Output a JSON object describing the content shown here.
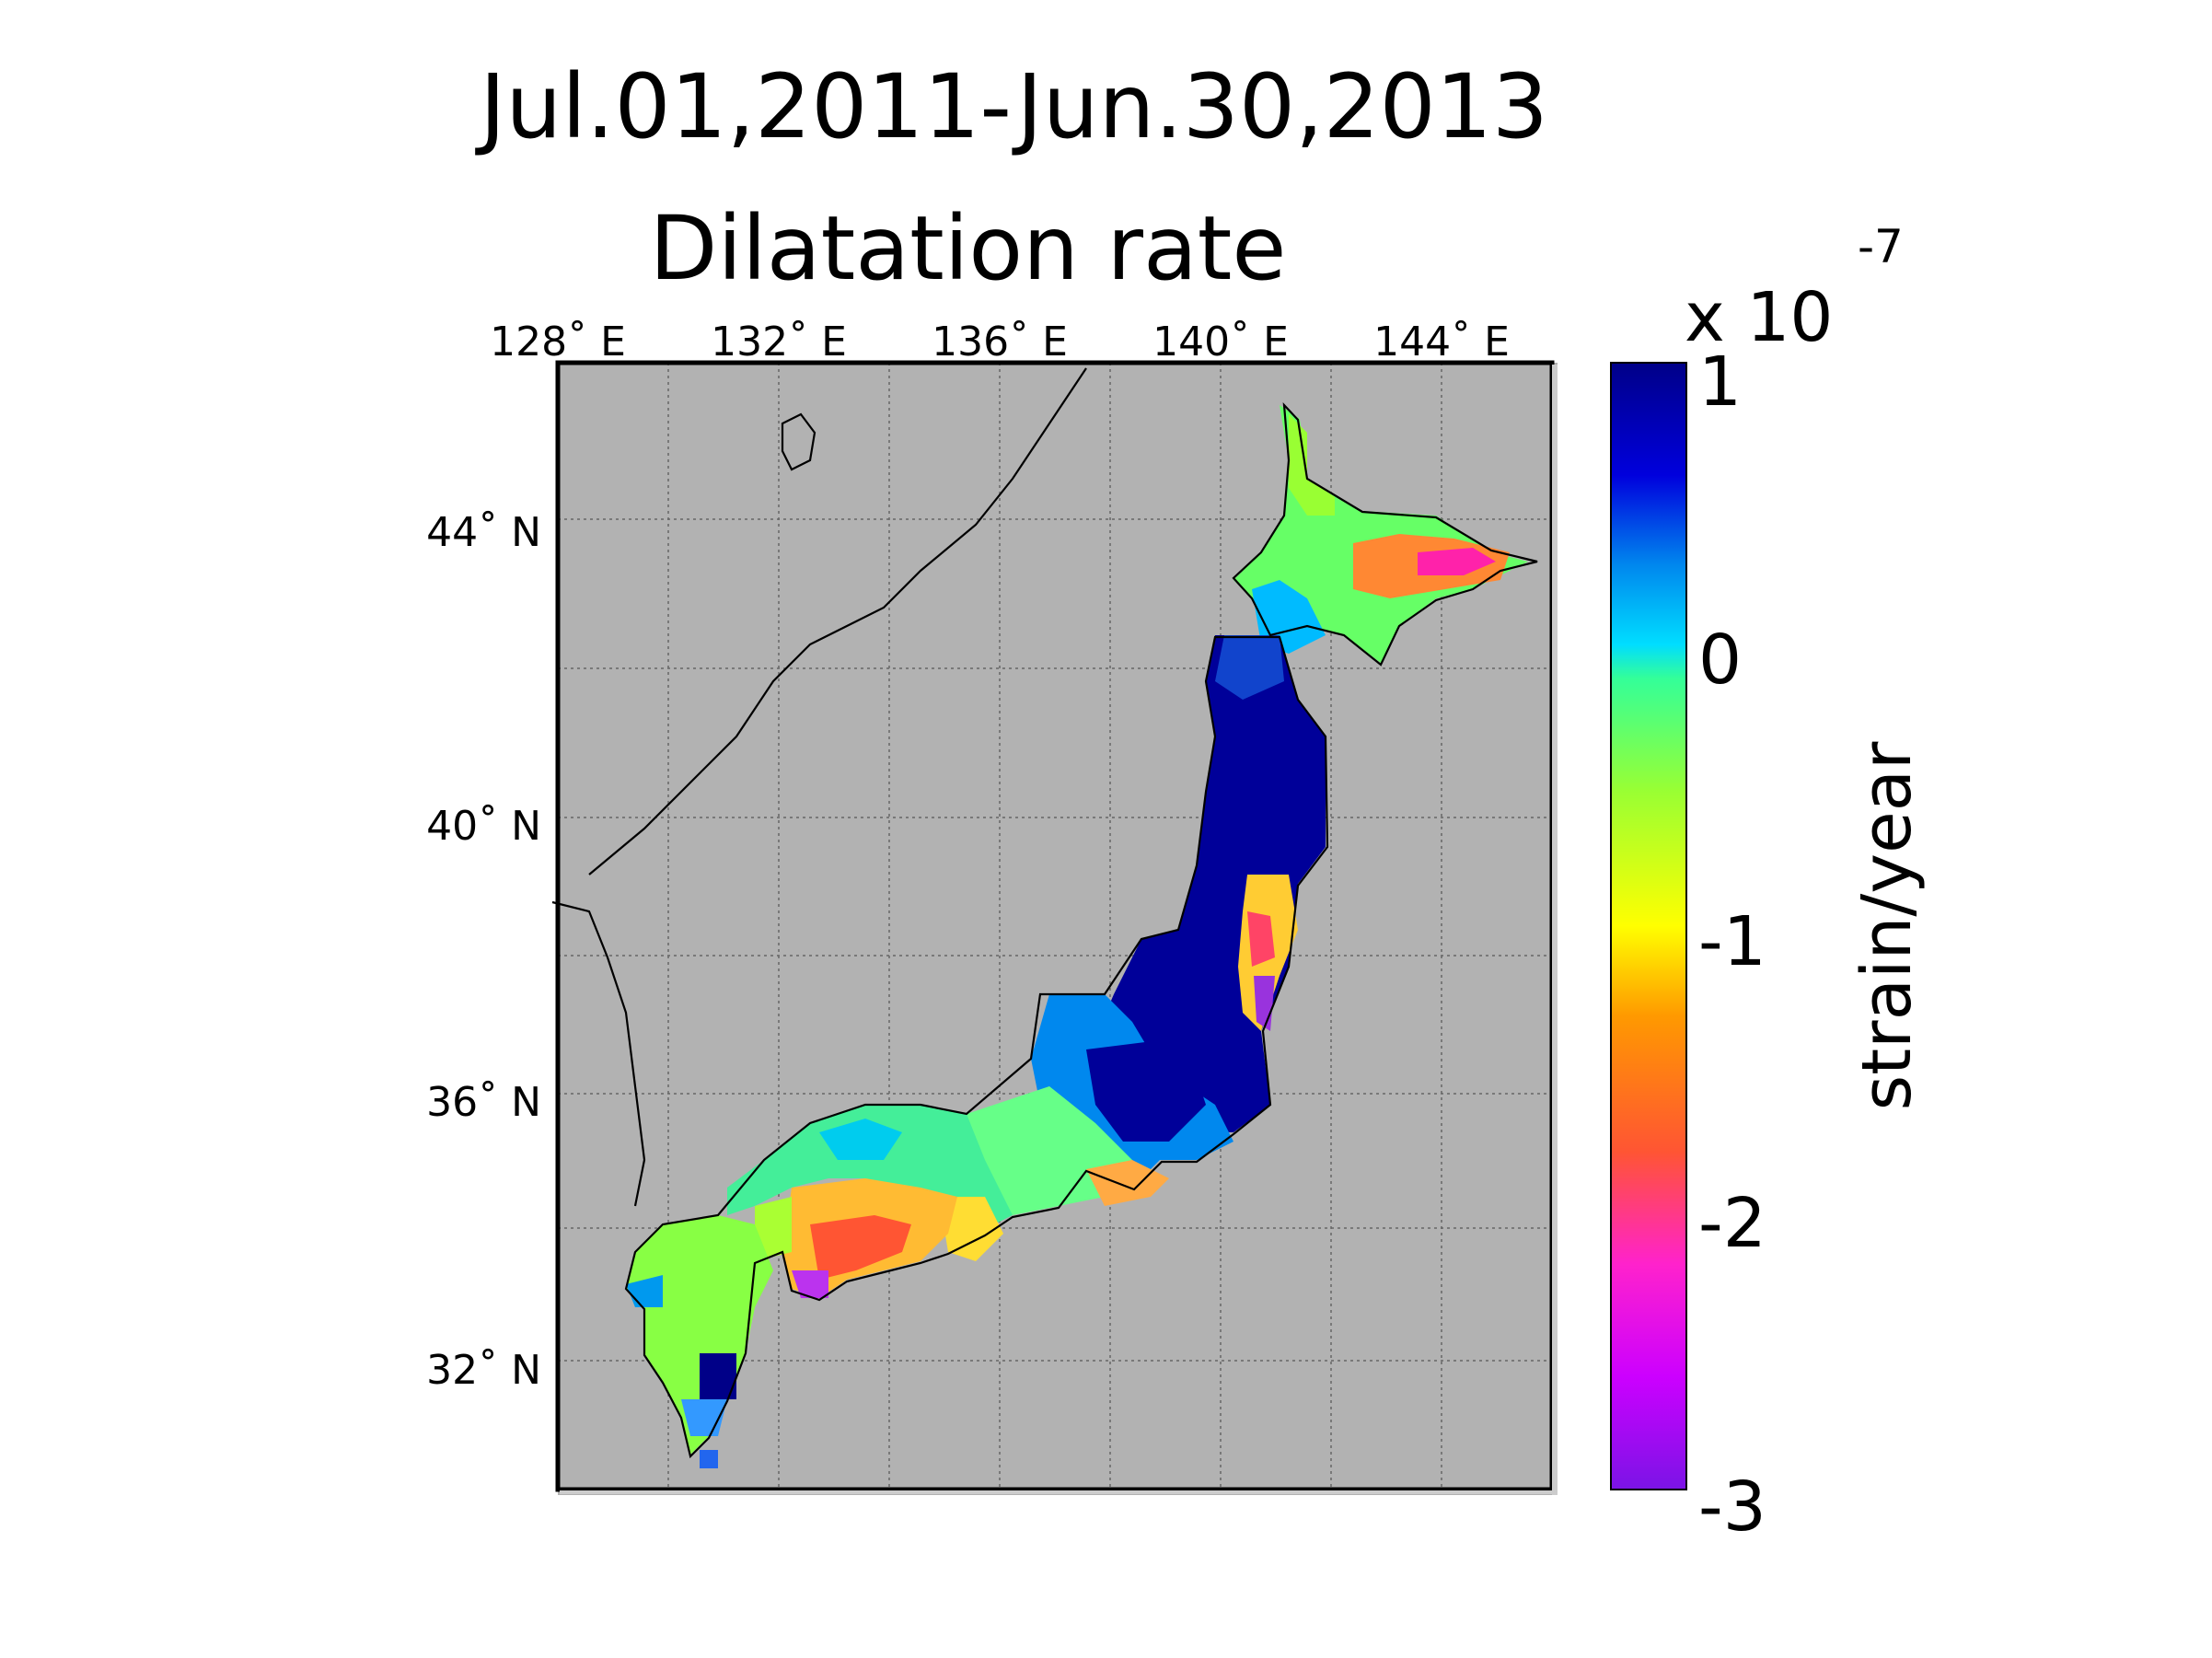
{
  "title": "Jul.01,2011-Jun.30,2013",
  "subtitle": "Dilatation rate",
  "map": {
    "lon_labels": [
      "128˚ E",
      "132˚ E",
      "136˚ E",
      "140˚ E",
      "144˚ E"
    ],
    "lat_labels": [
      "44˚ N",
      "40˚ N",
      "36˚ N",
      "32˚ N"
    ],
    "background_color": "#b2b2b2",
    "grid": true
  },
  "colorbar": {
    "multiplier": "x 10",
    "exponent": "-7",
    "label": "strain/year",
    "ticks": [
      "1",
      "0",
      "-1",
      "-2",
      "-3"
    ],
    "range": [
      -3,
      1
    ],
    "colors": [
      "#7b14e6",
      "#cc00ff",
      "#ff33cc",
      "#ff5533",
      "#ff8800",
      "#ffee00",
      "#99ff33",
      "#33ffaa",
      "#00ccff",
      "#0077ee",
      "#0000cc",
      "#000099"
    ]
  }
}
